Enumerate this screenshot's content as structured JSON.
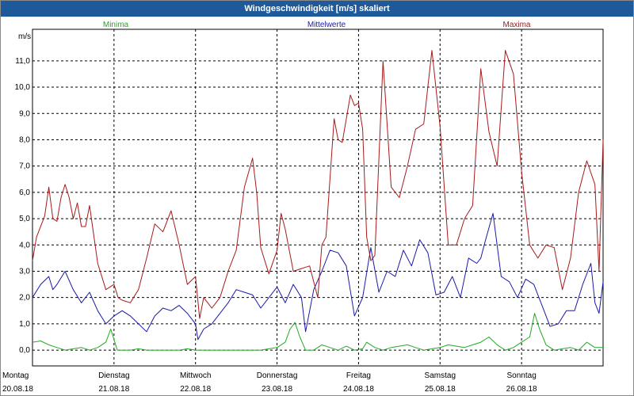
{
  "window": {
    "title": "Windgeschwindigkeit [m/s] skaliert"
  },
  "colors": {
    "title_bar": "#1e5a9a",
    "minima": "#22aa22",
    "mittel": "#1a1aa8",
    "maxima": "#a81a1a",
    "grid": "#000000"
  },
  "chart_data": {
    "type": "line",
    "title": "Windgeschwindigkeit [m/s] skaliert",
    "ylabel": "m/s",
    "xlabel": "",
    "ylim": [
      -0.6,
      12.2
    ],
    "xlim": [
      0,
      7
    ],
    "grid": true,
    "legend": "top",
    "y_ticks": [
      "0,0",
      "1,0",
      "2,0",
      "3,0",
      "4,0",
      "5,0",
      "6,0",
      "7,0",
      "8,0",
      "9,0",
      "10,0",
      "11,0"
    ],
    "x_ticks": [
      {
        "day": "Montag",
        "date": "20.08.18"
      },
      {
        "day": "Dienstag",
        "date": "21.08.18"
      },
      {
        "day": "Mittwoch",
        "date": "22.08.18"
      },
      {
        "day": "Donnerstag",
        "date": "23.08.18"
      },
      {
        "day": "Freitag",
        "date": "24.08.18"
      },
      {
        "day": "Samstag",
        "date": "25.08.18"
      },
      {
        "day": "Sonntag",
        "date": "26.08.18"
      }
    ],
    "series": [
      {
        "name": "Minima",
        "color": "#22aa22",
        "x": [
          0,
          0.1,
          0.2,
          0.3,
          0.4,
          0.5,
          0.6,
          0.7,
          0.8,
          0.9,
          0.96,
          1.0,
          1.04,
          1.1,
          1.2,
          1.3,
          1.4,
          1.5,
          1.6,
          1.7,
          1.8,
          1.9,
          2.0,
          2.1,
          2.2,
          2.3,
          2.4,
          2.5,
          2.6,
          2.7,
          2.8,
          2.9,
          3.0,
          3.1,
          3.16,
          3.22,
          3.28,
          3.35,
          3.45,
          3.55,
          3.65,
          3.75,
          3.85,
          3.95,
          4.05,
          4.1,
          4.2,
          4.3,
          4.4,
          4.5,
          4.6,
          4.7,
          4.8,
          4.9,
          5.0,
          5.1,
          5.2,
          5.3,
          5.4,
          5.5,
          5.6,
          5.7,
          5.8,
          5.9,
          6.0,
          6.1,
          6.16,
          6.22,
          6.3,
          6.4,
          6.5,
          6.6,
          6.7,
          6.8,
          6.9,
          7.0
        ],
        "values": [
          0.3,
          0.35,
          0.2,
          0.1,
          0.0,
          0.05,
          0.1,
          0.0,
          0.1,
          0.3,
          0.8,
          0.4,
          0.0,
          0.0,
          0.0,
          0.05,
          0.0,
          0.0,
          0.0,
          0.0,
          0.0,
          0.05,
          0.0,
          0.0,
          0.0,
          0.0,
          0.0,
          0.0,
          0.0,
          0.0,
          0.0,
          0.05,
          0.1,
          0.3,
          0.8,
          1.05,
          0.5,
          0.0,
          0.0,
          0.2,
          0.1,
          0.0,
          0.15,
          0.0,
          0.05,
          0.3,
          0.1,
          0.0,
          0.1,
          0.15,
          0.2,
          0.1,
          0.0,
          0.05,
          0.1,
          0.2,
          0.15,
          0.1,
          0.2,
          0.3,
          0.5,
          0.2,
          0.0,
          0.1,
          0.3,
          0.5,
          1.4,
          0.8,
          0.2,
          0.0,
          0.05,
          0.1,
          0.0,
          0.3,
          0.1,
          0.1
        ]
      },
      {
        "name": "Mittelwerte",
        "color": "#1a1aa8",
        "x": [
          0,
          0.1,
          0.2,
          0.25,
          0.3,
          0.4,
          0.5,
          0.6,
          0.7,
          0.8,
          0.9,
          1.0,
          1.1,
          1.2,
          1.3,
          1.4,
          1.5,
          1.6,
          1.7,
          1.8,
          1.9,
          2.0,
          2.03,
          2.1,
          2.2,
          2.3,
          2.4,
          2.5,
          2.6,
          2.7,
          2.8,
          2.9,
          3.0,
          3.1,
          3.2,
          3.3,
          3.35,
          3.45,
          3.55,
          3.65,
          3.75,
          3.85,
          3.95,
          4.05,
          4.15,
          4.25,
          4.35,
          4.45,
          4.55,
          4.65,
          4.75,
          4.85,
          4.95,
          5.05,
          5.15,
          5.25,
          5.35,
          5.45,
          5.5,
          5.55,
          5.65,
          5.75,
          5.85,
          5.95,
          6.05,
          6.15,
          6.25,
          6.35,
          6.45,
          6.55,
          6.65,
          6.75,
          6.85,
          6.9,
          6.95,
          7.0
        ],
        "values": [
          2.0,
          2.5,
          2.8,
          2.3,
          2.5,
          3.0,
          2.3,
          1.8,
          2.2,
          1.5,
          1.0,
          1.3,
          1.5,
          1.3,
          1.0,
          0.7,
          1.3,
          1.6,
          1.5,
          1.7,
          1.4,
          1.0,
          0.4,
          0.8,
          1.0,
          1.4,
          1.8,
          2.3,
          2.2,
          2.1,
          1.6,
          2.0,
          2.4,
          1.8,
          2.5,
          2.0,
          0.7,
          2.3,
          3.0,
          3.8,
          3.7,
          3.2,
          1.3,
          2.0,
          3.9,
          2.2,
          3.0,
          2.8,
          3.8,
          3.2,
          4.2,
          3.7,
          2.1,
          2.2,
          2.8,
          2.0,
          3.5,
          3.3,
          3.5,
          4.1,
          5.2,
          2.8,
          2.6,
          2.0,
          2.7,
          2.5,
          1.7,
          0.9,
          1.0,
          1.5,
          1.5,
          2.5,
          3.3,
          1.8,
          1.4,
          2.6
        ]
      },
      {
        "name": "Maxima",
        "color": "#a81a1a",
        "x": [
          0,
          0.05,
          0.15,
          0.2,
          0.25,
          0.3,
          0.35,
          0.4,
          0.45,
          0.5,
          0.55,
          0.6,
          0.65,
          0.7,
          0.8,
          0.9,
          1.0,
          1.05,
          1.1,
          1.2,
          1.3,
          1.4,
          1.5,
          1.6,
          1.7,
          1.8,
          1.9,
          2.0,
          2.05,
          2.1,
          2.2,
          2.3,
          2.4,
          2.5,
          2.6,
          2.7,
          2.75,
          2.8,
          2.9,
          3.0,
          3.05,
          3.1,
          3.2,
          3.3,
          3.4,
          3.5,
          3.55,
          3.6,
          3.7,
          3.75,
          3.8,
          3.9,
          3.95,
          4.0,
          4.05,
          4.1,
          4.15,
          4.2,
          4.3,
          4.4,
          4.5,
          4.6,
          4.7,
          4.8,
          4.9,
          5.0,
          5.1,
          5.2,
          5.3,
          5.4,
          5.5,
          5.6,
          5.7,
          5.8,
          5.9,
          6.0,
          6.1,
          6.2,
          6.3,
          6.4,
          6.5,
          6.6,
          6.7,
          6.8,
          6.9,
          6.95,
          7.0
        ],
        "values": [
          3.4,
          4.3,
          5.1,
          6.2,
          5.0,
          4.9,
          5.8,
          6.3,
          5.8,
          5.0,
          5.6,
          4.7,
          4.7,
          5.5,
          3.3,
          2.3,
          2.5,
          2.0,
          1.9,
          1.8,
          2.3,
          3.5,
          4.8,
          4.5,
          5.3,
          4.0,
          2.5,
          2.8,
          1.2,
          2.0,
          1.6,
          2.0,
          3.0,
          3.8,
          6.2,
          7.3,
          6.0,
          3.9,
          2.9,
          3.8,
          5.2,
          4.6,
          3.0,
          3.1,
          3.2,
          2.0,
          4.0,
          4.3,
          8.8,
          8.0,
          7.9,
          9.7,
          9.3,
          9.4,
          8.4,
          4.3,
          3.4,
          3.6,
          11.0,
          6.2,
          5.8,
          7.0,
          8.4,
          8.6,
          11.4,
          8.5,
          4.0,
          4.0,
          5.0,
          5.5,
          10.7,
          8.3,
          7.0,
          11.4,
          10.5,
          6.8,
          4.0,
          3.5,
          4.0,
          3.9,
          2.3,
          3.5,
          6.0,
          7.2,
          6.3,
          3.0,
          8.0
        ]
      }
    ]
  }
}
